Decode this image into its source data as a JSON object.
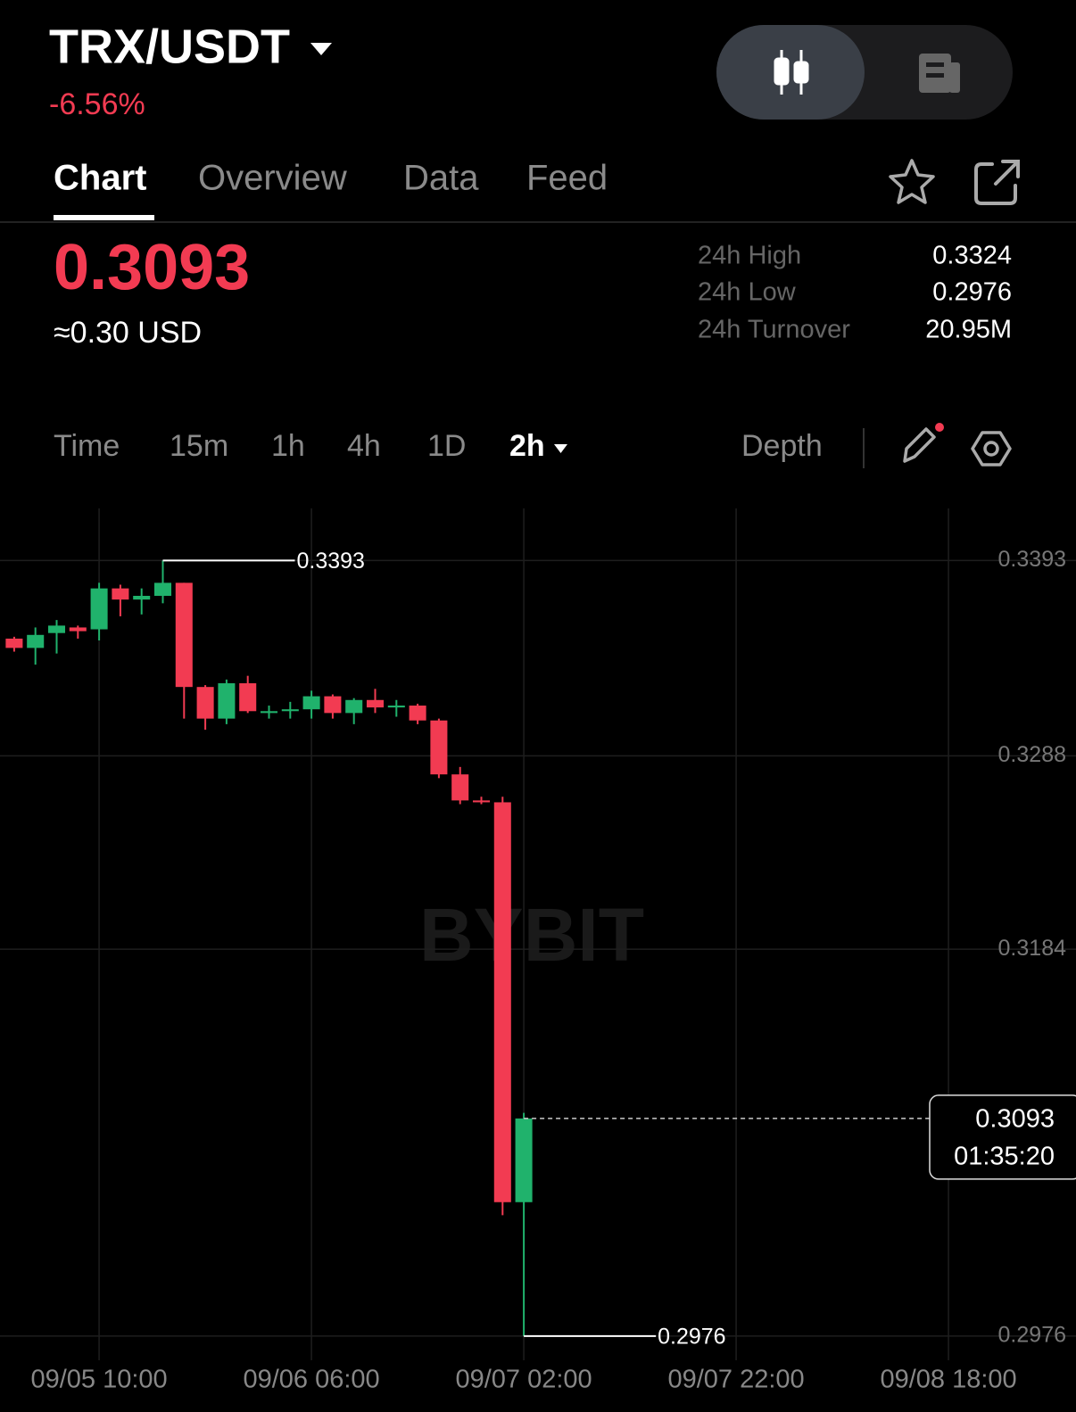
{
  "header": {
    "pair": "TRX/USDT",
    "change": "-6.56%"
  },
  "tabs": [
    "Chart",
    "Overview",
    "Data",
    "Feed"
  ],
  "price": {
    "last": "0.3093",
    "usd": "≈0.30 USD"
  },
  "stats": [
    {
      "label": "24h High",
      "value": "0.3324"
    },
    {
      "label": "24h Low",
      "value": "0.2976"
    },
    {
      "label": "24h Turnover",
      "value": "20.95M"
    }
  ],
  "intervals": [
    "Time",
    "15m",
    "1h",
    "4h",
    "1D",
    "2h"
  ],
  "depth": "Depth",
  "watermark": "BYBIT",
  "chart_data": {
    "type": "candlestick",
    "categories": [
      null,
      null,
      null,
      null,
      "09/05 10:00",
      null,
      null,
      null,
      null,
      null,
      null,
      null,
      null,
      null,
      "09/06 06:00",
      null,
      null,
      null,
      null,
      null,
      null,
      null,
      null,
      null,
      "09/07 02:00",
      null,
      null,
      null,
      null,
      null,
      null,
      null,
      null,
      null,
      "09/07 22:00",
      null,
      null,
      null,
      null,
      null,
      null,
      null,
      null,
      null,
      "09/08 18:00",
      null
    ],
    "open": [
      0.3351,
      0.3346,
      0.3354,
      0.3357,
      0.3356,
      0.3378,
      0.3372,
      0.3374,
      0.3381,
      0.3325,
      0.3308,
      0.3327,
      0.3311,
      0.3312,
      0.3313,
      0.332,
      0.3311,
      0.3318,
      0.3314,
      0.3315,
      0.3307,
      0.3278,
      0.3264,
      0.3263,
      0.3048,
      null,
      null,
      null,
      null,
      null,
      null,
      null,
      null,
      null,
      null,
      null,
      null,
      null,
      null,
      null,
      null,
      null,
      null,
      null,
      null,
      null
    ],
    "high": [
      0.3352,
      0.3357,
      0.3361,
      0.3358,
      0.3381,
      0.338,
      0.3378,
      0.3393,
      0.3381,
      0.3326,
      0.3329,
      0.3331,
      0.3315,
      0.3317,
      0.3323,
      0.3321,
      0.3319,
      0.3324,
      0.3318,
      0.3316,
      0.3308,
      0.3282,
      0.3266,
      0.3266,
      0.3096,
      null,
      null,
      null,
      null,
      null,
      null,
      null,
      null,
      null,
      null,
      null,
      null,
      null,
      null,
      null,
      null,
      null,
      null,
      null,
      null,
      null
    ],
    "low": [
      0.3344,
      0.3337,
      0.3343,
      0.3351,
      0.335,
      0.3363,
      0.3364,
      0.337,
      0.3308,
      0.3302,
      0.3305,
      0.3311,
      0.3308,
      0.3308,
      0.3308,
      0.3308,
      0.3305,
      0.3311,
      0.3309,
      0.3305,
      0.3276,
      0.3262,
      0.3262,
      0.3041,
      0.2976,
      null,
      null,
      null,
      null,
      null,
      null,
      null,
      null,
      null,
      null,
      null,
      null,
      null,
      null,
      null,
      null,
      null,
      null,
      null,
      null,
      null
    ],
    "close": [
      0.3346,
      0.3353,
      0.3358,
      0.3355,
      0.3378,
      0.3372,
      0.3374,
      0.3381,
      0.3325,
      0.3308,
      0.3327,
      0.3312,
      0.3312,
      0.3313,
      0.332,
      0.3311,
      0.3318,
      0.3314,
      0.3315,
      0.3307,
      0.3278,
      0.3264,
      0.3263,
      0.3048,
      0.3093,
      null,
      null,
      null,
      null,
      null,
      null,
      null,
      null,
      null,
      null,
      null,
      null,
      null,
      null,
      null,
      null,
      null,
      null,
      null,
      null,
      null
    ],
    "up_color": "#20b26c",
    "down_color": "#f23b52",
    "ylim": [
      0.2963,
      0.3421
    ],
    "yticks": [
      0.3393,
      0.3288,
      0.3184,
      0.2976
    ],
    "grid": true,
    "high_label": "0.3393",
    "low_label": "0.2976",
    "last_price_label": "0.3093",
    "countdown": "01:35:20"
  }
}
